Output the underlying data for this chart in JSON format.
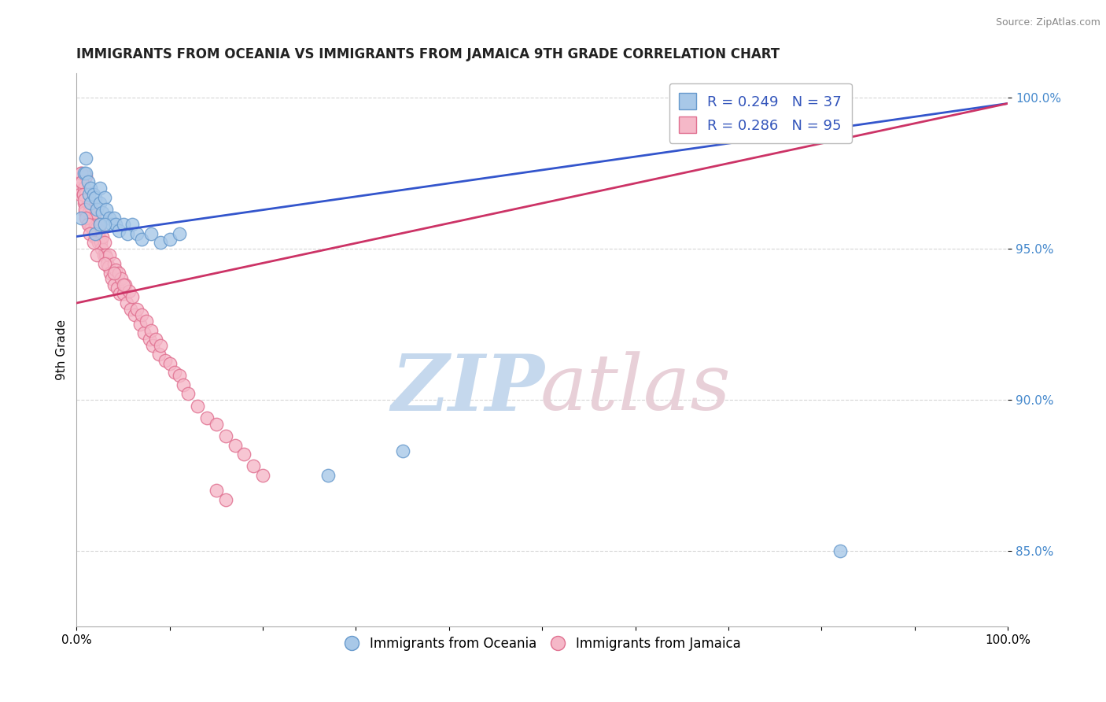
{
  "title": "IMMIGRANTS FROM OCEANIA VS IMMIGRANTS FROM JAMAICA 9TH GRADE CORRELATION CHART",
  "source": "Source: ZipAtlas.com",
  "xlabel": "",
  "ylabel": "9th Grade",
  "xlim": [
    0.0,
    1.0
  ],
  "ylim": [
    0.825,
    1.008
  ],
  "yticks": [
    0.85,
    0.9,
    0.95,
    1.0
  ],
  "ytick_labels": [
    "85.0%",
    "90.0%",
    "95.0%",
    "100.0%"
  ],
  "oceania_color": "#a8c8e8",
  "jamaica_color": "#f5b8c8",
  "oceania_edge": "#6699cc",
  "jamaica_edge": "#e07090",
  "line_oceania": "#3355cc",
  "line_jamaica": "#cc3366",
  "R_oceania": 0.249,
  "N_oceania": 37,
  "R_jamaica": 0.286,
  "N_jamaica": 95,
  "legend_label_oceania": "Immigrants from Oceania",
  "legend_label_jamaica": "Immigrants from Jamaica",
  "oceania_points_x": [
    0.005,
    0.008,
    0.01,
    0.01,
    0.012,
    0.013,
    0.015,
    0.015,
    0.018,
    0.02,
    0.022,
    0.025,
    0.025,
    0.028,
    0.03,
    0.032,
    0.035,
    0.038,
    0.04,
    0.042,
    0.045,
    0.05,
    0.055,
    0.06,
    0.065,
    0.07,
    0.08,
    0.09,
    0.1,
    0.11,
    0.02,
    0.025,
    0.03,
    0.8,
    0.82,
    0.27,
    0.35
  ],
  "oceania_points_y": [
    0.96,
    0.975,
    0.975,
    0.98,
    0.972,
    0.968,
    0.97,
    0.965,
    0.968,
    0.967,
    0.963,
    0.97,
    0.965,
    0.962,
    0.967,
    0.963,
    0.96,
    0.958,
    0.96,
    0.958,
    0.956,
    0.958,
    0.955,
    0.958,
    0.955,
    0.953,
    0.955,
    0.952,
    0.953,
    0.955,
    0.955,
    0.958,
    0.958,
    0.998,
    0.85,
    0.875,
    0.883
  ],
  "jamaica_points_x": [
    0.003,
    0.004,
    0.005,
    0.006,
    0.007,
    0.008,
    0.008,
    0.009,
    0.01,
    0.01,
    0.011,
    0.012,
    0.013,
    0.013,
    0.014,
    0.015,
    0.015,
    0.016,
    0.017,
    0.018,
    0.019,
    0.02,
    0.02,
    0.021,
    0.022,
    0.023,
    0.024,
    0.025,
    0.025,
    0.026,
    0.027,
    0.028,
    0.029,
    0.03,
    0.031,
    0.032,
    0.033,
    0.034,
    0.035,
    0.036,
    0.038,
    0.04,
    0.04,
    0.042,
    0.044,
    0.045,
    0.046,
    0.048,
    0.05,
    0.052,
    0.054,
    0.056,
    0.058,
    0.06,
    0.062,
    0.065,
    0.068,
    0.07,
    0.072,
    0.075,
    0.078,
    0.08,
    0.082,
    0.085,
    0.088,
    0.09,
    0.095,
    0.1,
    0.105,
    0.11,
    0.115,
    0.12,
    0.13,
    0.14,
    0.15,
    0.16,
    0.17,
    0.18,
    0.19,
    0.2,
    0.005,
    0.006,
    0.007,
    0.008,
    0.009,
    0.01,
    0.012,
    0.014,
    0.018,
    0.022,
    0.03,
    0.04,
    0.05,
    0.15,
    0.16
  ],
  "jamaica_points_y": [
    0.97,
    0.968,
    0.975,
    0.972,
    0.968,
    0.965,
    0.97,
    0.962,
    0.968,
    0.974,
    0.96,
    0.965,
    0.962,
    0.966,
    0.958,
    0.96,
    0.964,
    0.957,
    0.96,
    0.956,
    0.954,
    0.958,
    0.962,
    0.954,
    0.957,
    0.952,
    0.956,
    0.958,
    0.953,
    0.952,
    0.95,
    0.954,
    0.948,
    0.952,
    0.948,
    0.947,
    0.945,
    0.944,
    0.948,
    0.942,
    0.94,
    0.945,
    0.938,
    0.943,
    0.937,
    0.942,
    0.935,
    0.94,
    0.935,
    0.938,
    0.932,
    0.936,
    0.93,
    0.934,
    0.928,
    0.93,
    0.925,
    0.928,
    0.922,
    0.926,
    0.92,
    0.923,
    0.918,
    0.92,
    0.915,
    0.918,
    0.913,
    0.912,
    0.909,
    0.908,
    0.905,
    0.902,
    0.898,
    0.894,
    0.892,
    0.888,
    0.885,
    0.882,
    0.878,
    0.875,
    0.975,
    0.972,
    0.968,
    0.966,
    0.963,
    0.96,
    0.958,
    0.955,
    0.952,
    0.948,
    0.945,
    0.942,
    0.938,
    0.87,
    0.867
  ]
}
